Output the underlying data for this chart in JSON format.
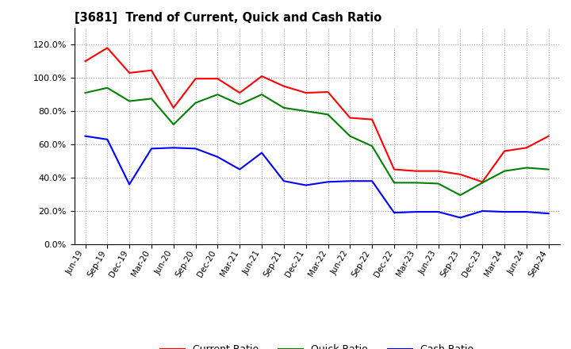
{
  "title": "[3681]  Trend of Current, Quick and Cash Ratio",
  "labels": [
    "Jun-19",
    "Sep-19",
    "Dec-19",
    "Mar-20",
    "Jun-20",
    "Sep-20",
    "Dec-20",
    "Mar-21",
    "Jun-21",
    "Sep-21",
    "Dec-21",
    "Mar-22",
    "Jun-22",
    "Sep-22",
    "Dec-22",
    "Mar-23",
    "Jun-23",
    "Sep-23",
    "Dec-23",
    "Mar-24",
    "Jun-24",
    "Sep-24"
  ],
  "current_ratio": [
    110.0,
    118.0,
    103.0,
    104.5,
    82.0,
    99.5,
    99.5,
    91.0,
    101.0,
    95.0,
    91.0,
    91.5,
    76.0,
    75.0,
    45.0,
    44.0,
    44.0,
    42.0,
    37.5,
    56.0,
    58.0,
    65.0
  ],
  "quick_ratio": [
    91.0,
    94.0,
    86.0,
    87.5,
    72.0,
    85.0,
    90.0,
    84.0,
    90.0,
    82.0,
    80.0,
    78.0,
    65.0,
    59.0,
    37.0,
    37.0,
    36.5,
    29.5,
    37.0,
    44.0,
    46.0,
    45.0
  ],
  "cash_ratio": [
    65.0,
    63.0,
    36.0,
    57.5,
    58.0,
    57.5,
    52.5,
    45.0,
    55.0,
    38.0,
    35.5,
    37.5,
    38.0,
    38.0,
    19.0,
    19.5,
    19.5,
    16.0,
    20.0,
    19.5,
    19.5,
    18.5
  ],
  "current_color": "#FF0000",
  "quick_color": "#008000",
  "cash_color": "#0000FF",
  "ylim": [
    0,
    130
  ],
  "yticks": [
    0,
    20,
    40,
    60,
    80,
    100,
    120
  ],
  "grid_color": "#999999",
  "bg_color": "#ffffff",
  "plot_bg": "#ffffff"
}
